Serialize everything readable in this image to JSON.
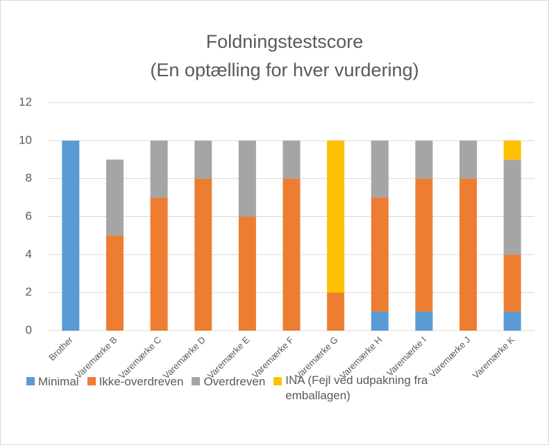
{
  "chart_data": {
    "type": "stacked_bar",
    "title": "Foldningstestscore",
    "subtitle": "(En optælling for hver vurdering)",
    "categories": [
      "Brother",
      "Varemærke B",
      "Varemærke C",
      "Varemærke D",
      "Varemærke E",
      "Varemærke F",
      "Varemærke G",
      "Varemærke H",
      "Varemærke I",
      "Varemærke J",
      "Varemærke K"
    ],
    "series": [
      {
        "name": "Minimal",
        "color": "#5b9bd5",
        "values": [
          10,
          0,
          0,
          0,
          0,
          0,
          0,
          1,
          1,
          0,
          1
        ]
      },
      {
        "name": "Ikke-overdreven",
        "color": "#ed7d31",
        "values": [
          0,
          5,
          7,
          8,
          6,
          8,
          2,
          6,
          7,
          8,
          3
        ]
      },
      {
        "name": "Overdreven",
        "color": "#a5a5a5",
        "values": [
          0,
          4,
          3,
          2,
          4,
          2,
          0,
          3,
          2,
          2,
          5
        ]
      },
      {
        "name": "INA (Fejl ved udpakning fra emballagen)",
        "color": "#ffc000",
        "values": [
          0,
          0,
          0,
          0,
          0,
          0,
          8,
          0,
          0,
          0,
          1
        ]
      }
    ],
    "ylim": [
      0,
      12
    ],
    "yticks": [
      0,
      2,
      4,
      6,
      8,
      10,
      12
    ],
    "grid": true,
    "legend": "bottom"
  }
}
